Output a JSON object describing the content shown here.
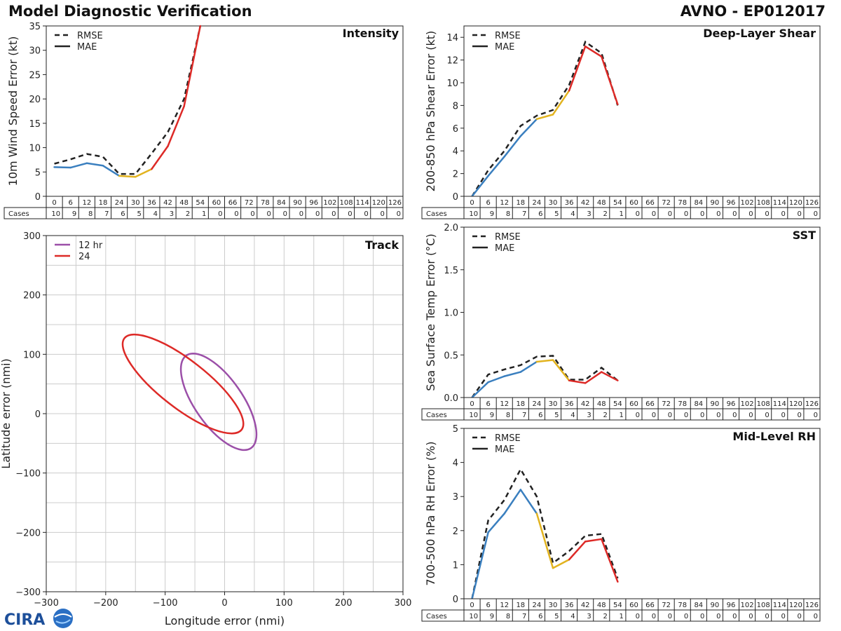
{
  "header": {
    "title_left": "Model Diagnostic Verification",
    "title_right": "AVNO - EP012017"
  },
  "logo": {
    "text": "CIRA",
    "colors": {
      "text": "#1d4f9a",
      "globe": "#2a6fc4"
    }
  },
  "colors": {
    "rmse": "#222222",
    "mae_low": "#3a7fbf",
    "mae_mid": "#e2b31f",
    "mae_high": "#dd2a27",
    "track_12": "#9b4fa8",
    "track_24": "#dd2a27",
    "grid": "#cccccc"
  },
  "hours": [
    "0",
    "6",
    "12",
    "18",
    "24",
    "30",
    "36",
    "42",
    "48",
    "54",
    "60",
    "66",
    "72",
    "78",
    "84",
    "90",
    "96",
    "102",
    "108",
    "114",
    "120",
    "126"
  ],
  "cases": [
    10,
    9,
    8,
    7,
    6,
    5,
    4,
    3,
    2,
    1,
    0,
    0,
    0,
    0,
    0,
    0,
    0,
    0,
    0,
    0,
    0,
    0
  ],
  "cases_label": "Cases",
  "legend": {
    "rmse": "RMSE",
    "mae": "MAE"
  },
  "chart_data": [
    {
      "id": "intensity",
      "type": "line",
      "title": "Intensity",
      "ylabel": "10m Wind Speed Error (kt)",
      "ylim": [
        0,
        35
      ],
      "yticks": [
        0,
        5,
        10,
        15,
        20,
        25,
        30,
        35
      ],
      "x": [
        0,
        6,
        12,
        18,
        24,
        30,
        36,
        42,
        48,
        54
      ],
      "series": [
        {
          "name": "RMSE",
          "style": "dashed",
          "values": [
            6.7,
            7.6,
            8.7,
            8.1,
            4.6,
            4.6,
            8.8,
            13.2,
            20.0,
            35.0
          ]
        },
        {
          "name": "MAE",
          "style": "solid",
          "values": [
            6.0,
            5.9,
            6.8,
            6.3,
            4.2,
            4.0,
            5.6,
            10.3,
            18.5,
            35.0
          ]
        }
      ]
    },
    {
      "id": "shear",
      "type": "line",
      "title": "Deep-Layer Shear",
      "ylabel": "200-850 hPa Shear Error (kt)",
      "ylim": [
        0,
        15
      ],
      "yticks": [
        0,
        2,
        4,
        6,
        8,
        10,
        12,
        14
      ],
      "x": [
        0,
        6,
        12,
        18,
        24,
        30,
        36,
        42,
        48,
        54
      ],
      "series": [
        {
          "name": "RMSE",
          "style": "dashed",
          "values": [
            0.0,
            2.3,
            4.0,
            6.2,
            7.1,
            7.6,
            9.8,
            13.6,
            12.6,
            8.0
          ]
        },
        {
          "name": "MAE",
          "style": "solid",
          "values": [
            0.0,
            1.8,
            3.5,
            5.3,
            6.8,
            7.2,
            9.3,
            13.2,
            12.3,
            8.1
          ]
        }
      ]
    },
    {
      "id": "sst",
      "type": "line",
      "title": "SST",
      "ylabel": "Sea Surface Temp Error (°C)",
      "ylim": [
        0,
        2.0
      ],
      "yticks": [
        "0.0",
        "0.5",
        "1.0",
        "1.5",
        "2.0"
      ],
      "x": [
        0,
        6,
        12,
        18,
        24,
        30,
        36,
        42,
        48,
        54
      ],
      "series": [
        {
          "name": "RMSE",
          "style": "dashed",
          "values": [
            0.0,
            0.27,
            0.33,
            0.38,
            0.48,
            0.49,
            0.21,
            0.21,
            0.35,
            0.2
          ]
        },
        {
          "name": "MAE",
          "style": "solid",
          "values": [
            0.0,
            0.18,
            0.25,
            0.3,
            0.42,
            0.44,
            0.2,
            0.17,
            0.3,
            0.2
          ]
        }
      ]
    },
    {
      "id": "rh",
      "type": "line",
      "title": "Mid-Level RH",
      "ylabel": "700-500 hPa RH Error (%)",
      "ylim": [
        0,
        5
      ],
      "yticks": [
        0,
        1,
        2,
        3,
        4,
        5
      ],
      "x": [
        0,
        6,
        12,
        18,
        24,
        30,
        36,
        42,
        48,
        54
      ],
      "series": [
        {
          "name": "RMSE",
          "style": "dashed",
          "values": [
            0.0,
            2.3,
            2.9,
            3.8,
            3.0,
            1.05,
            1.4,
            1.85,
            1.9,
            0.6
          ]
        },
        {
          "name": "MAE",
          "style": "solid",
          "values": [
            0.0,
            1.95,
            2.5,
            3.2,
            2.5,
            0.9,
            1.15,
            1.68,
            1.75,
            0.5
          ]
        }
      ]
    },
    {
      "id": "track",
      "type": "scatter",
      "title": "Track",
      "xlabel": "Longitude error (nmi)",
      "ylabel": "Latitude error (nmi)",
      "xlim": [
        -300,
        300
      ],
      "ylim": [
        -300,
        300
      ],
      "xticks": [
        "−300",
        "−200",
        "−100",
        "0",
        "100",
        "200",
        "300"
      ],
      "yticks": [
        "−300",
        "−200",
        "−100",
        "0",
        "100",
        "200",
        "300"
      ],
      "ellipses": [
        {
          "name": "12 hr",
          "cx": -10,
          "cy": 20,
          "rx": 95,
          "ry": 40,
          "angle": 55
        },
        {
          "name": "24",
          "cx": -70,
          "cy": 50,
          "rx": 125,
          "ry": 40,
          "angle": 38
        }
      ]
    }
  ]
}
